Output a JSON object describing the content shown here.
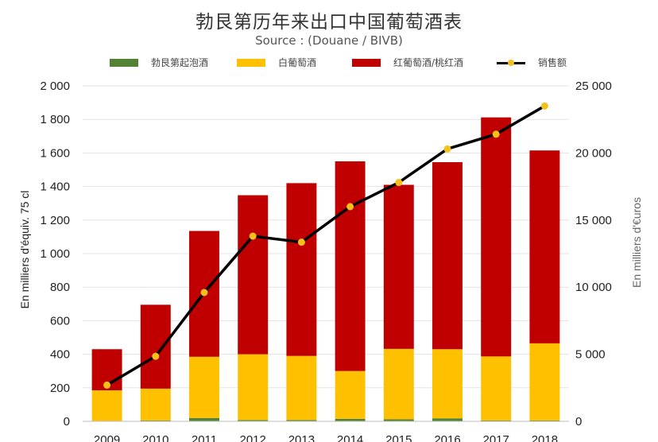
{
  "chart_data": {
    "type": "bar",
    "title": "勃艮第历年来出口中国葡萄酒表",
    "subtitle": "Source : (Douane / BIVB)",
    "categories": [
      "2009",
      "2010",
      "2011",
      "2012",
      "2013",
      "2014",
      "2015",
      "2016",
      "2017",
      "2018"
    ],
    "series": [
      {
        "name": "勃艮第起泡酒",
        "type": "bar",
        "color": "#548235",
        "values": [
          3,
          5,
          20,
          8,
          8,
          15,
          12,
          18,
          5,
          5
        ]
      },
      {
        "name": "白葡萄酒",
        "type": "bar",
        "color": "#ffc000",
        "values": [
          182,
          190,
          365,
          392,
          382,
          285,
          420,
          412,
          382,
          460
        ]
      },
      {
        "name": "红葡萄酒/桃红酒",
        "type": "bar",
        "color": "#c00000",
        "values": [
          245,
          500,
          750,
          948,
          1030,
          1250,
          978,
          1115,
          1425,
          1150
        ]
      },
      {
        "name": "销售额",
        "type": "line",
        "axis": "right",
        "color": "#000000",
        "marker_color": "#f5c01a",
        "values": [
          2700,
          4850,
          9600,
          13800,
          13350,
          16000,
          17800,
          20300,
          21400,
          23500
        ]
      }
    ],
    "ylabel": "En milliers d'équiv. 75 cl",
    "ylabel_right": "En milliers d'€uros",
    "ylim": [
      0,
      2000
    ],
    "ylim_right": [
      0,
      25000
    ],
    "yticks": [
      "0",
      "200",
      "400",
      "600",
      "800",
      "1 000",
      "1 200",
      "1 400",
      "1 600",
      "1 800",
      "2 000"
    ],
    "yticks_right": [
      "0",
      "5 000",
      "10 000",
      "15 000",
      "20 000",
      "25 000"
    ],
    "stacked": true,
    "grid": true,
    "legend_position": "top"
  }
}
